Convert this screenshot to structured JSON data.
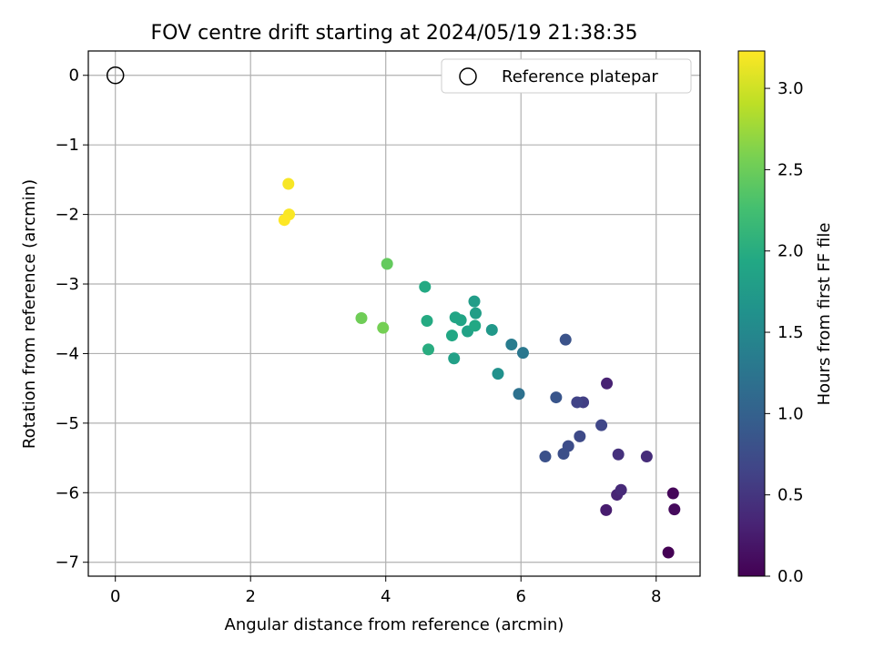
{
  "chart_data": {
    "type": "scatter",
    "title": "FOV centre drift starting at 2024/05/19 21:38:35",
    "xlabel": "Angular distance from reference (arcmin)",
    "ylabel": "Rotation from reference (arcmin)",
    "xlim": [
      -0.4,
      8.65
    ],
    "ylim": [
      -7.2,
      0.35
    ],
    "xticks": [
      0,
      2,
      4,
      6,
      8
    ],
    "xtick_labels": [
      "0",
      "2",
      "4",
      "6",
      "8"
    ],
    "yticks": [
      0,
      -1,
      -2,
      -3,
      -4,
      -5,
      -6,
      -7
    ],
    "ytick_labels": [
      "0",
      "−1",
      "−2",
      "−3",
      "−4",
      "−5",
      "−6",
      "−7"
    ],
    "grid": true,
    "legend": {
      "position": "top-right",
      "entries": [
        "Reference platepar"
      ]
    },
    "reference_point": {
      "x": 0,
      "y": 0
    },
    "colorbar": {
      "label": "Hours from first FF file",
      "range": [
        0,
        3.23
      ],
      "ticks": [
        0.0,
        0.5,
        1.0,
        1.5,
        2.0,
        2.5,
        3.0
      ],
      "tick_labels": [
        "0.0",
        "0.5",
        "1.0",
        "1.5",
        "2.0",
        "2.5",
        "3.0"
      ],
      "colormap": "viridis"
    },
    "series": [
      {
        "points": [
          {
            "x": 8.18,
            "y": -6.86,
            "h": 0.0
          },
          {
            "x": 8.25,
            "y": -6.01,
            "h": 0.05
          },
          {
            "x": 8.27,
            "y": -6.24,
            "h": 0.08
          },
          {
            "x": 7.26,
            "y": -6.25,
            "h": 0.25
          },
          {
            "x": 7.27,
            "y": -4.43,
            "h": 0.3
          },
          {
            "x": 7.42,
            "y": -6.03,
            "h": 0.33
          },
          {
            "x": 7.48,
            "y": -5.96,
            "h": 0.38
          },
          {
            "x": 7.86,
            "y": -5.48,
            "h": 0.4
          },
          {
            "x": 7.44,
            "y": -5.45,
            "h": 0.45
          },
          {
            "x": 6.92,
            "y": -4.7,
            "h": 0.6
          },
          {
            "x": 6.83,
            "y": -4.7,
            "h": 0.65
          },
          {
            "x": 7.19,
            "y": -5.03,
            "h": 0.68
          },
          {
            "x": 6.87,
            "y": -5.19,
            "h": 0.72
          },
          {
            "x": 6.7,
            "y": -5.33,
            "h": 0.75
          },
          {
            "x": 6.63,
            "y": -5.44,
            "h": 0.78
          },
          {
            "x": 6.36,
            "y": -5.48,
            "h": 0.8
          },
          {
            "x": 6.66,
            "y": -3.8,
            "h": 0.82
          },
          {
            "x": 6.52,
            "y": -4.63,
            "h": 0.85
          },
          {
            "x": 5.97,
            "y": -4.58,
            "h": 1.2
          },
          {
            "x": 6.03,
            "y": -3.99,
            "h": 1.28
          },
          {
            "x": 5.86,
            "y": -3.87,
            "h": 1.35
          },
          {
            "x": 5.66,
            "y": -4.29,
            "h": 1.62
          },
          {
            "x": 5.57,
            "y": -3.66,
            "h": 1.72
          },
          {
            "x": 5.31,
            "y": -3.25,
            "h": 1.78
          },
          {
            "x": 5.33,
            "y": -3.42,
            "h": 1.8
          },
          {
            "x": 5.01,
            "y": -4.07,
            "h": 1.82
          },
          {
            "x": 5.21,
            "y": -3.68,
            "h": 1.85
          },
          {
            "x": 5.11,
            "y": -3.52,
            "h": 1.88
          },
          {
            "x": 5.03,
            "y": -3.48,
            "h": 1.9
          },
          {
            "x": 4.98,
            "y": -3.74,
            "h": 1.92
          },
          {
            "x": 5.32,
            "y": -3.6,
            "h": 1.94
          },
          {
            "x": 4.58,
            "y": -3.04,
            "h": 1.95
          },
          {
            "x": 4.61,
            "y": -3.53,
            "h": 1.97
          },
          {
            "x": 4.63,
            "y": -3.94,
            "h": 2.0
          },
          {
            "x": 4.02,
            "y": -2.71,
            "h": 2.45
          },
          {
            "x": 3.64,
            "y": -3.49,
            "h": 2.52
          },
          {
            "x": 3.96,
            "y": -3.63,
            "h": 2.55
          },
          {
            "x": 2.56,
            "y": -1.56,
            "h": 3.2
          },
          {
            "x": 2.57,
            "y": -2.0,
            "h": 3.21
          },
          {
            "x": 2.5,
            "y": -2.08,
            "h": 3.23
          }
        ]
      }
    ]
  }
}
